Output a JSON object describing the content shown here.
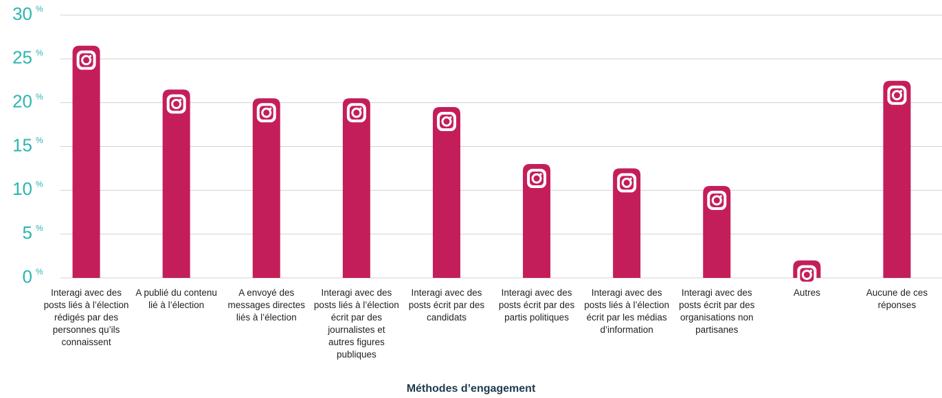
{
  "chart_data": {
    "type": "bar",
    "x_label": "Méthodes d’engagement",
    "y_unit": "%",
    "categories": [
      "Interagi avec des posts liés à l’élection rédigés par des personnes qu’ils connaissent",
      "A publié du contenu lié à l’élection",
      "A envoyé des messages directes liés à l’élection",
      "Interagi avec des posts liés à l’élection écrit par des journalistes et autres figures publiques",
      "Interagi avec des posts écrit par des candidats",
      "Interagi avec des posts écrit par des partis politiques",
      "Interagi avec des posts liés à l’élection écrit par les médias d’information",
      "Interagi avec des posts écrit par des organisations non partisanes",
      "Autres",
      "Aucune de ces réponses"
    ],
    "values": [
      26.5,
      21.5,
      20.5,
      20.5,
      19.5,
      13,
      12.5,
      10.5,
      2,
      22.5
    ],
    "color": "#c41e5a",
    "ylim": [
      0,
      30
    ],
    "yticks": [
      0,
      5,
      10,
      15,
      20,
      25,
      30
    ],
    "grid": true
  }
}
